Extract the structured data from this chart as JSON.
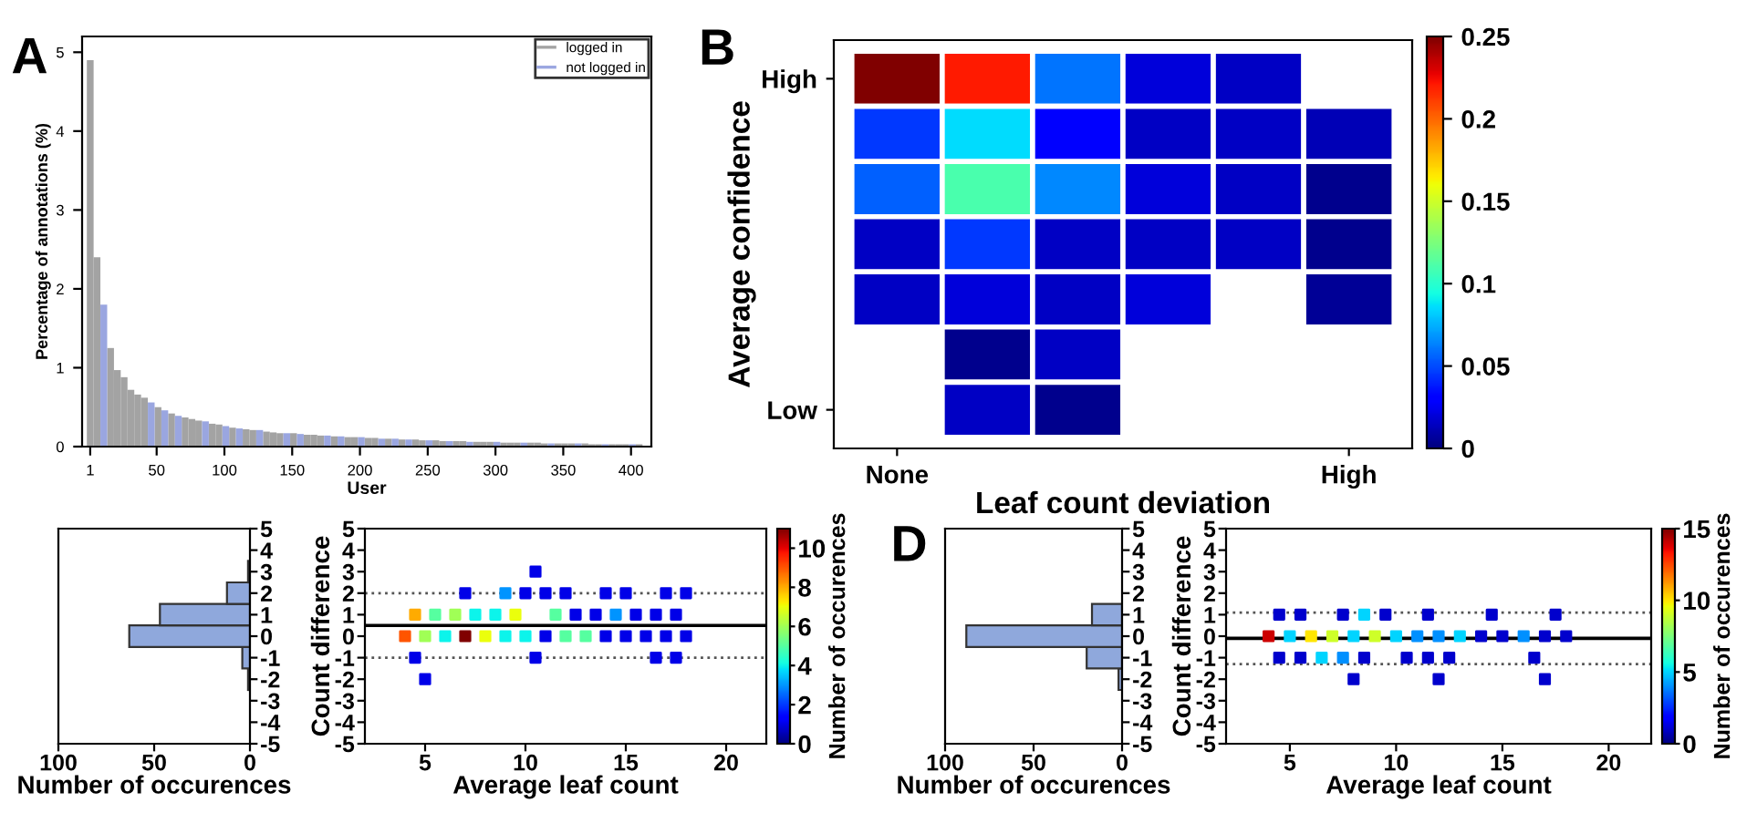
{
  "chart_data": [
    {
      "type": "bar",
      "title": "A",
      "xlabel": "User",
      "ylabel": "Percentage of annotations (%)",
      "legend": "top right",
      "series": [
        {
          "name": "logged in",
          "color": "#a3a3a3",
          "x": [
            1,
            6,
            16,
            21,
            26,
            31,
            36,
            41,
            51,
            61,
            71,
            76,
            81,
            91,
            96,
            106,
            116,
            121,
            131,
            136,
            141,
            151,
            161,
            166,
            171,
            181,
            191,
            196,
            206,
            211,
            221,
            231,
            241,
            246,
            256,
            261,
            271,
            276,
            286,
            291,
            296,
            306,
            311,
            316,
            326,
            331,
            336,
            346,
            351,
            356,
            366,
            371,
            376,
            386,
            391,
            396,
            406
          ],
          "values": [
            4.9,
            2.4,
            1.25,
            0.97,
            0.88,
            0.72,
            0.66,
            0.62,
            0.5,
            0.42,
            0.37,
            0.35,
            0.33,
            0.29,
            0.28,
            0.24,
            0.22,
            0.21,
            0.19,
            0.18,
            0.17,
            0.17,
            0.15,
            0.15,
            0.14,
            0.13,
            0.12,
            0.12,
            0.11,
            0.11,
            0.1,
            0.09,
            0.09,
            0.08,
            0.08,
            0.07,
            0.07,
            0.07,
            0.06,
            0.06,
            0.06,
            0.05,
            0.05,
            0.05,
            0.05,
            0.05,
            0.04,
            0.04,
            0.04,
            0.04,
            0.04,
            0.03,
            0.03,
            0.03,
            0.03,
            0.03,
            0.03
          ]
        },
        {
          "name": "not logged in",
          "color": "#9aa6e0",
          "x": [
            11,
            46,
            56,
            66,
            86,
            101,
            111,
            126,
            146,
            156,
            176,
            186,
            201,
            216,
            226,
            236,
            251,
            266,
            281,
            301,
            321,
            341,
            361,
            381,
            401
          ],
          "values": [
            1.8,
            0.56,
            0.46,
            0.39,
            0.32,
            0.26,
            0.23,
            0.21,
            0.17,
            0.16,
            0.14,
            0.13,
            0.12,
            0.1,
            0.1,
            0.09,
            0.08,
            0.07,
            0.06,
            0.06,
            0.05,
            0.04,
            0.04,
            0.03,
            0.03
          ]
        }
      ],
      "xlim": [
        -5,
        415
      ],
      "xticks": [
        1,
        50,
        100,
        150,
        200,
        250,
        300,
        350,
        400
      ],
      "ylim": [
        0,
        5.2
      ],
      "yticks": [
        0,
        1,
        2,
        3,
        4,
        5
      ]
    },
    {
      "type": "heatmap",
      "title": "B",
      "xlabel": "Leaf count deviation",
      "ylabel": "Average confidence",
      "categories": [
        "None",
        null,
        null,
        null,
        null,
        "High"
      ],
      "y_categories": [
        "High",
        null,
        null,
        null,
        null,
        null,
        "Low"
      ],
      "cells": [
        [
          0.25,
          0.22,
          0.06,
          0.02,
          0.015,
          null
        ],
        [
          0.045,
          0.085,
          0.03,
          0.015,
          0.015,
          0.012
        ],
        [
          0.055,
          0.11,
          0.065,
          0.02,
          0.015,
          0.003
        ],
        [
          0.015,
          0.045,
          0.015,
          0.015,
          0.015,
          0.003
        ],
        [
          0.015,
          0.02,
          0.015,
          0.02,
          null,
          0.005
        ],
        [
          null,
          0.003,
          0.015,
          null,
          null,
          null
        ],
        [
          null,
          0.015,
          0.003,
          null,
          null,
          null
        ]
      ],
      "clim": [
        0,
        0.25
      ],
      "cticks": [
        0,
        0.05,
        0.1,
        0.15,
        0.2,
        0.25
      ]
    },
    {
      "type": "histogram",
      "orientation": "horizontal",
      "xlabel": "Number of occurences",
      "bins": [
        -2.5,
        -1.5,
        -0.5,
        0.5,
        1.5,
        2.5,
        3.5
      ],
      "values": [
        1,
        4,
        63,
        47,
        12,
        1
      ],
      "color": "#8fa8dc",
      "xlim": [
        100,
        0
      ],
      "xticks": [
        100,
        50,
        0
      ],
      "ylim": [
        -5,
        5
      ],
      "yticks": [
        -5,
        -4,
        -3,
        -2,
        -1,
        0,
        1,
        2,
        3,
        4,
        5
      ]
    },
    {
      "type": "scatter",
      "xlabel": "Average leaf count",
      "ylabel": "Count difference",
      "clabel": "Number of occurences",
      "marker": "square",
      "x": [
        10.5,
        7,
        9,
        10,
        11,
        12,
        14,
        15,
        17,
        18,
        4.5,
        5.5,
        6.5,
        7.5,
        8.5,
        9.5,
        11.5,
        12.5,
        13.5,
        14.5,
        15.5,
        16.5,
        17.5,
        4,
        5,
        6,
        7,
        8,
        9,
        10,
        11,
        12,
        13,
        14,
        15,
        16,
        17,
        18,
        4.5,
        10.5,
        16.5,
        17.5,
        5
      ],
      "values": [
        3,
        2,
        2,
        2,
        2,
        2,
        2,
        2,
        2,
        2,
        1,
        1,
        1,
        1,
        1,
        1,
        1,
        1,
        1,
        1,
        1,
        1,
        1,
        0,
        0,
        0,
        0,
        0,
        0,
        0,
        0,
        0,
        0,
        0,
        0,
        0,
        0,
        0,
        -1,
        -1,
        -1,
        -1,
        -2
      ],
      "cvalues": [
        1,
        1,
        3,
        1,
        1,
        1,
        1,
        1,
        1,
        1,
        8,
        5,
        6,
        4,
        4,
        7,
        5,
        1,
        1,
        3,
        1,
        1,
        1,
        9,
        6,
        4,
        11,
        7,
        4,
        4,
        1,
        5,
        5,
        1,
        1,
        1,
        1,
        1,
        1,
        1,
        1,
        1,
        1
      ],
      "clim": [
        0,
        11
      ],
      "cticks": [
        0,
        2,
        4,
        6,
        8,
        10
      ],
      "ref_lines": [
        {
          "axis": "y",
          "value": 0.5,
          "line_style": "solid",
          "color": "#000000"
        },
        {
          "axis": "y",
          "value": 2,
          "line_style": "dotted",
          "color": "#555555"
        },
        {
          "axis": "y",
          "value": -1,
          "line_style": "dotted",
          "color": "#555555"
        }
      ],
      "xlim": [
        2,
        22
      ],
      "xticks": [
        5,
        10,
        15,
        20
      ],
      "ylim": [
        -5,
        5
      ],
      "yticks": [
        -5,
        -4,
        -3,
        -2,
        -1,
        0,
        1,
        2,
        3,
        4,
        5
      ]
    },
    {
      "type": "histogram",
      "orientation": "horizontal",
      "title": "D",
      "xlabel": "Number of occurences",
      "bins": [
        -2.5,
        -1.5,
        -0.5,
        0.5,
        1.5
      ],
      "values": [
        2,
        20,
        88,
        17
      ],
      "color": "#8fa8dc",
      "xlim": [
        100,
        0
      ],
      "xticks": [
        100,
        50,
        0
      ],
      "ylim": [
        -5,
        5
      ],
      "yticks": [
        -5,
        -4,
        -3,
        -2,
        -1,
        0,
        1,
        2,
        3,
        4,
        5
      ]
    },
    {
      "type": "scatter",
      "xlabel": "Average leaf count",
      "ylabel": "Count difference",
      "clabel": "Number of occurences",
      "marker": "square",
      "x": [
        4.5,
        5.5,
        7.5,
        8.5,
        9.5,
        11.5,
        14.5,
        17.5,
        4,
        5,
        6,
        7,
        8,
        9,
        10,
        11,
        12,
        13,
        14,
        15,
        16,
        17,
        18,
        4.5,
        5.5,
        6.5,
        7.5,
        8.5,
        10.5,
        11.5,
        12.5,
        16.5,
        8,
        12,
        17
      ],
      "values": [
        1,
        1,
        1,
        1,
        1,
        1,
        1,
        1,
        0,
        0,
        0,
        0,
        0,
        0,
        0,
        0,
        0,
        0,
        0,
        0,
        0,
        0,
        0,
        -1,
        -1,
        -1,
        -1,
        -1,
        -1,
        -1,
        -1,
        -1,
        -2,
        -2,
        -2
      ],
      "cvalues": [
        1,
        1,
        1,
        5,
        1,
        1,
        1,
        1,
        14,
        5,
        10,
        9,
        5,
        9,
        5,
        4,
        4,
        5,
        1,
        1,
        4,
        1,
        1,
        1,
        1,
        5,
        4,
        1,
        1,
        1,
        1,
        1,
        1,
        1,
        1
      ],
      "clim": [
        0,
        15
      ],
      "cticks": [
        0,
        5,
        10,
        15
      ],
      "ref_lines": [
        {
          "axis": "y",
          "value": -0.1,
          "line_style": "solid",
          "color": "#000000"
        },
        {
          "axis": "y",
          "value": 1.1,
          "line_style": "dotted",
          "color": "#555555"
        },
        {
          "axis": "y",
          "value": -1.3,
          "line_style": "dotted",
          "color": "#555555"
        }
      ],
      "xlim": [
        2,
        22
      ],
      "xticks": [
        5,
        10,
        15,
        20
      ],
      "ylim": [
        -5,
        5
      ],
      "yticks": [
        -5,
        -4,
        -3,
        -2,
        -1,
        0,
        1,
        2,
        3,
        4,
        5
      ]
    }
  ]
}
